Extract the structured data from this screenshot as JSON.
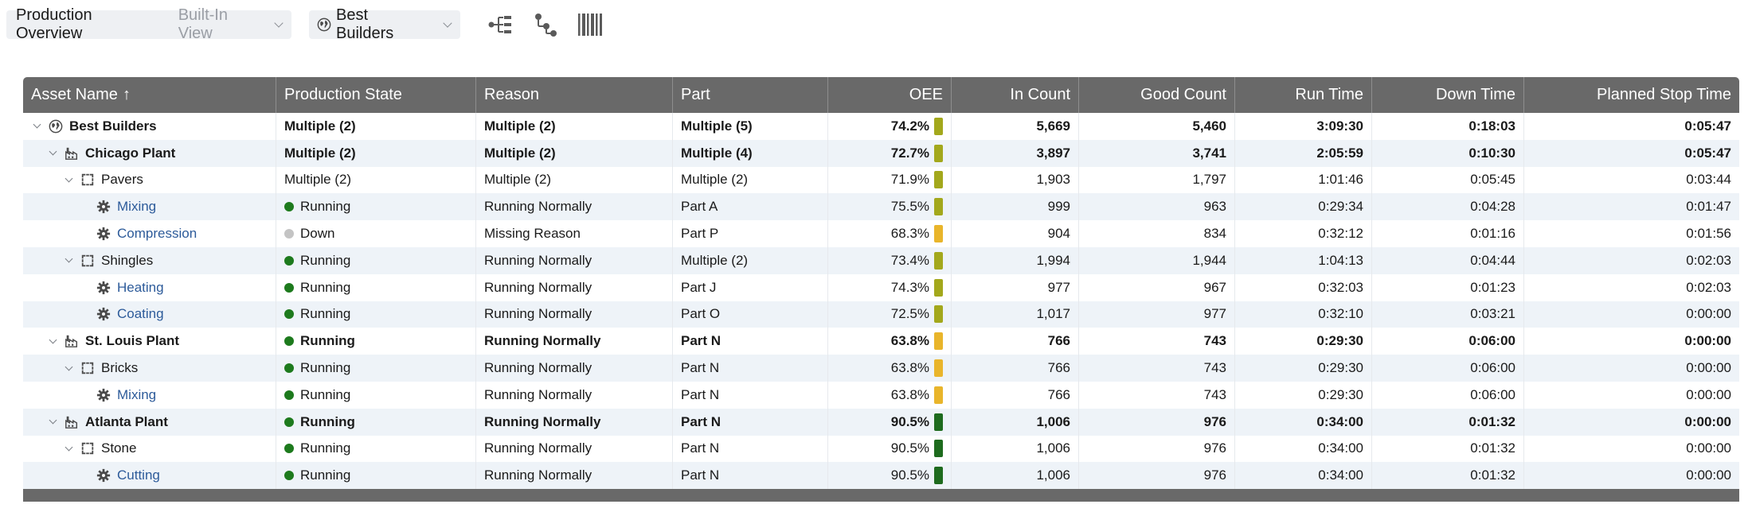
{
  "toolbar": {
    "view_title": "Production Overview",
    "view_subtitle": "Built-In View",
    "asset_selector": "Best Builders",
    "icons": [
      "tree-view-icon",
      "hierarchy-icon",
      "barcode-icon"
    ]
  },
  "colors": {
    "header_bg": "#696969",
    "row_alt_bg": "#eef3f8",
    "running": "#1d7a1d",
    "down": "#c4c4c4",
    "oee_green": "#1e6b1e",
    "oee_olive": "#a3a81c",
    "oee_amber": "#e9b52b",
    "link": "#2d5b9a"
  },
  "grid": {
    "columns": [
      "Asset Name",
      "Production State",
      "Reason",
      "Part",
      "OEE",
      "In Count",
      "Good Count",
      "Run Time",
      "Down Time",
      "Planned Stop Time"
    ],
    "sort_indicator": "↑",
    "rows": [
      {
        "asset": "Best Builders",
        "level": 0,
        "kind": "enterprise",
        "expandable": true,
        "bold": true,
        "state": "Multiple (2)",
        "state_dot": "",
        "reason": "Multiple (2)",
        "part": "Multiple (5)",
        "oee": "74.2%",
        "oee_level": "olive",
        "in_count": "5,669",
        "good_count": "5,460",
        "run_time": "3:09:30",
        "down_time": "0:18:03",
        "planned_stop": "0:05:47"
      },
      {
        "asset": "Chicago Plant",
        "level": 1,
        "kind": "site",
        "expandable": true,
        "bold": true,
        "state": "Multiple (2)",
        "state_dot": "",
        "reason": "Multiple (2)",
        "part": "Multiple (4)",
        "oee": "72.7%",
        "oee_level": "olive",
        "in_count": "3,897",
        "good_count": "3,741",
        "run_time": "2:05:59",
        "down_time": "0:10:30",
        "planned_stop": "0:05:47"
      },
      {
        "asset": "Pavers",
        "level": 2,
        "kind": "area",
        "expandable": true,
        "bold": false,
        "state": "Multiple (2)",
        "state_dot": "",
        "reason": "Multiple (2)",
        "part": "Multiple (2)",
        "oee": "71.9%",
        "oee_level": "olive",
        "in_count": "1,903",
        "good_count": "1,797",
        "run_time": "1:01:46",
        "down_time": "0:05:45",
        "planned_stop": "0:03:44"
      },
      {
        "asset": "Mixing",
        "level": 3,
        "kind": "machine",
        "expandable": false,
        "bold": false,
        "state": "Running",
        "state_dot": "running",
        "reason": "Running Normally",
        "part": "Part A",
        "oee": "75.5%",
        "oee_level": "olive",
        "in_count": "999",
        "good_count": "963",
        "run_time": "0:29:34",
        "down_time": "0:04:28",
        "planned_stop": "0:01:47"
      },
      {
        "asset": "Compression",
        "level": 3,
        "kind": "machine",
        "expandable": false,
        "bold": false,
        "state": "Down",
        "state_dot": "down",
        "reason": "Missing Reason",
        "part": "Part P",
        "oee": "68.3%",
        "oee_level": "amber",
        "in_count": "904",
        "good_count": "834",
        "run_time": "0:32:12",
        "down_time": "0:01:16",
        "planned_stop": "0:01:56"
      },
      {
        "asset": "Shingles",
        "level": 2,
        "kind": "area",
        "expandable": true,
        "bold": false,
        "state": "Running",
        "state_dot": "running",
        "reason": "Running Normally",
        "part": "Multiple (2)",
        "oee": "73.4%",
        "oee_level": "olive",
        "in_count": "1,994",
        "good_count": "1,944",
        "run_time": "1:04:13",
        "down_time": "0:04:44",
        "planned_stop": "0:02:03"
      },
      {
        "asset": "Heating",
        "level": 3,
        "kind": "machine",
        "expandable": false,
        "bold": false,
        "state": "Running",
        "state_dot": "running",
        "reason": "Running Normally",
        "part": "Part J",
        "oee": "74.3%",
        "oee_level": "olive",
        "in_count": "977",
        "good_count": "967",
        "run_time": "0:32:03",
        "down_time": "0:01:23",
        "planned_stop": "0:02:03"
      },
      {
        "asset": "Coating",
        "level": 3,
        "kind": "machine",
        "expandable": false,
        "bold": false,
        "state": "Running",
        "state_dot": "running",
        "reason": "Running Normally",
        "part": "Part O",
        "oee": "72.5%",
        "oee_level": "olive",
        "in_count": "1,017",
        "good_count": "977",
        "run_time": "0:32:10",
        "down_time": "0:03:21",
        "planned_stop": "0:00:00"
      },
      {
        "asset": "St. Louis Plant",
        "level": 1,
        "kind": "site",
        "expandable": true,
        "bold": true,
        "state": "Running",
        "state_dot": "running",
        "reason": "Running Normally",
        "part": "Part N",
        "oee": "63.8%",
        "oee_level": "amber",
        "in_count": "766",
        "good_count": "743",
        "run_time": "0:29:30",
        "down_time": "0:06:00",
        "planned_stop": "0:00:00"
      },
      {
        "asset": "Bricks",
        "level": 2,
        "kind": "area",
        "expandable": true,
        "bold": false,
        "state": "Running",
        "state_dot": "running",
        "reason": "Running Normally",
        "part": "Part N",
        "oee": "63.8%",
        "oee_level": "amber",
        "in_count": "766",
        "good_count": "743",
        "run_time": "0:29:30",
        "down_time": "0:06:00",
        "planned_stop": "0:00:00"
      },
      {
        "asset": "Mixing",
        "level": 3,
        "kind": "machine",
        "expandable": false,
        "bold": false,
        "state": "Running",
        "state_dot": "running",
        "reason": "Running Normally",
        "part": "Part N",
        "oee": "63.8%",
        "oee_level": "amber",
        "in_count": "766",
        "good_count": "743",
        "run_time": "0:29:30",
        "down_time": "0:06:00",
        "planned_stop": "0:00:00"
      },
      {
        "asset": "Atlanta Plant",
        "level": 1,
        "kind": "site",
        "expandable": true,
        "bold": true,
        "state": "Running",
        "state_dot": "running",
        "reason": "Running Normally",
        "part": "Part N",
        "oee": "90.5%",
        "oee_level": "green",
        "in_count": "1,006",
        "good_count": "976",
        "run_time": "0:34:00",
        "down_time": "0:01:32",
        "planned_stop": "0:00:00"
      },
      {
        "asset": "Stone",
        "level": 2,
        "kind": "area",
        "expandable": true,
        "bold": false,
        "state": "Running",
        "state_dot": "running",
        "reason": "Running Normally",
        "part": "Part N",
        "oee": "90.5%",
        "oee_level": "green",
        "in_count": "1,006",
        "good_count": "976",
        "run_time": "0:34:00",
        "down_time": "0:01:32",
        "planned_stop": "0:00:00"
      },
      {
        "asset": "Cutting",
        "level": 3,
        "kind": "machine",
        "expandable": false,
        "bold": false,
        "state": "Running",
        "state_dot": "running",
        "reason": "Running Normally",
        "part": "Part N",
        "oee": "90.5%",
        "oee_level": "green",
        "in_count": "1,006",
        "good_count": "976",
        "run_time": "0:34:00",
        "down_time": "0:01:32",
        "planned_stop": "0:00:00"
      }
    ]
  }
}
